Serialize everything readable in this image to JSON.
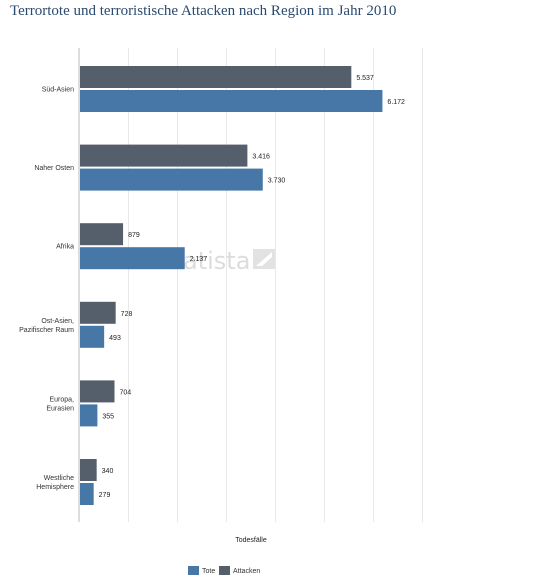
{
  "chart_data": {
    "type": "bar",
    "orientation": "horizontal",
    "title": "Terrortote und terroristische Attacken nach Region im Jahr 2010",
    "xlabel": "Todesfälle",
    "ylabel": "",
    "xlim": [
      0,
      7000
    ],
    "grid": true,
    "legend_position": "bottom",
    "categories": [
      "Süd-Asien",
      "Naher Osten",
      "Afrika",
      "Ost-Asien, Pazifischer Raum",
      "Europa, Eurasien",
      "Westliche Hemisphere"
    ],
    "category_lines": [
      [
        "Süd-Asien"
      ],
      [
        "Naher Osten"
      ],
      [
        "Afrika"
      ],
      [
        "Ost-Asien,",
        "Pazifischer Raum"
      ],
      [
        "Europa,",
        "Eurasien"
      ],
      [
        "Westliche",
        "Hemisphere"
      ]
    ],
    "series": [
      {
        "name": "Attacken",
        "color": "#555f6b",
        "values": [
          5537,
          3416,
          879,
          728,
          704,
          340
        ],
        "labels": [
          "5.537",
          "3.416",
          "879",
          "728",
          "704",
          "340"
        ]
      },
      {
        "name": "Tote",
        "color": "#4677a6",
        "values": [
          6172,
          3730,
          2137,
          493,
          355,
          279
        ],
        "labels": [
          "6.172",
          "3.730",
          "2.137",
          "493",
          "355",
          "279"
        ]
      }
    ],
    "legend": [
      {
        "name": "Tote",
        "color": "#4677a6"
      },
      {
        "name": "Attacken",
        "color": "#555f6b"
      }
    ]
  },
  "watermark": "atista"
}
